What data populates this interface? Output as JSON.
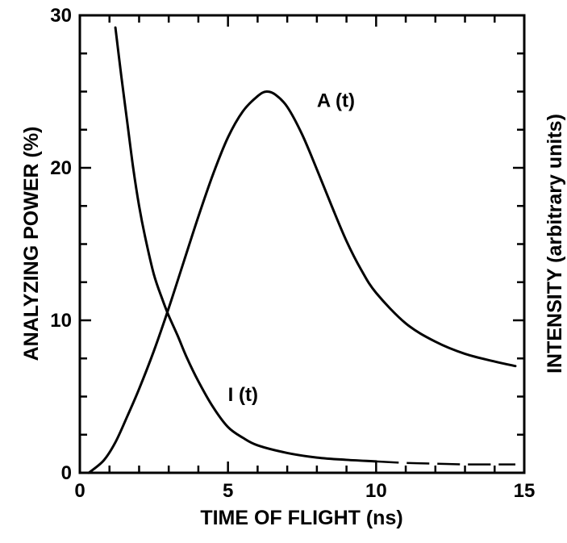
{
  "chart_data": {
    "type": "line",
    "xlabel": "TIME OF FLIGHT (ns)",
    "ylabel": "ANALYZING POWER (%)",
    "y2label": "INTENSITY (arbitrary units)",
    "xlim": [
      0,
      15
    ],
    "ylim": [
      0,
      30
    ],
    "x_ticks": [
      "0",
      "5",
      "10",
      "15"
    ],
    "y_ticks": [
      "0",
      "10",
      "20",
      "30"
    ],
    "grid": false,
    "series": [
      {
        "name": "A (t)",
        "line_style": "solid",
        "x": [
          0.3,
          0.8,
          1.2,
          1.6,
          2.0,
          2.5,
          3.0,
          3.5,
          4.0,
          4.5,
          5.0,
          5.5,
          6.0,
          6.3,
          6.6,
          7.0,
          7.5,
          8.0,
          8.5,
          9.0,
          9.5,
          10.0,
          11.0,
          12.0,
          13.0,
          14.0,
          14.7
        ],
        "y": [
          0.0,
          0.8,
          2.0,
          3.7,
          5.5,
          8.0,
          10.8,
          13.8,
          16.8,
          19.6,
          22.0,
          23.7,
          24.7,
          25.0,
          24.8,
          24.0,
          22.2,
          19.9,
          17.5,
          15.2,
          13.3,
          11.8,
          9.8,
          8.6,
          7.8,
          7.3,
          7.0
        ]
      },
      {
        "name": "I (t)",
        "line_style": "solid",
        "x": [
          1.2,
          1.4,
          1.6,
          1.8,
          2.0,
          2.2,
          2.5,
          2.8,
          3.0,
          3.3,
          3.6,
          4.0,
          4.5,
          5.0,
          5.5,
          6.0,
          7.0,
          8.0,
          9.0,
          10.0
        ],
        "y": [
          29.2,
          26.0,
          23.0,
          20.0,
          17.5,
          15.5,
          13.0,
          11.3,
          10.3,
          9.0,
          7.6,
          6.0,
          4.3,
          3.0,
          2.3,
          1.8,
          1.3,
          1.0,
          0.85,
          0.75
        ]
      },
      {
        "name": "",
        "line_style": "dashed",
        "x": [
          10.0,
          11.0,
          12.0,
          13.0,
          14.0,
          14.7
        ],
        "y": [
          0.75,
          0.65,
          0.6,
          0.55,
          0.55,
          0.55
        ]
      }
    ],
    "annotations": [
      "A (t)",
      "I (t)"
    ]
  }
}
